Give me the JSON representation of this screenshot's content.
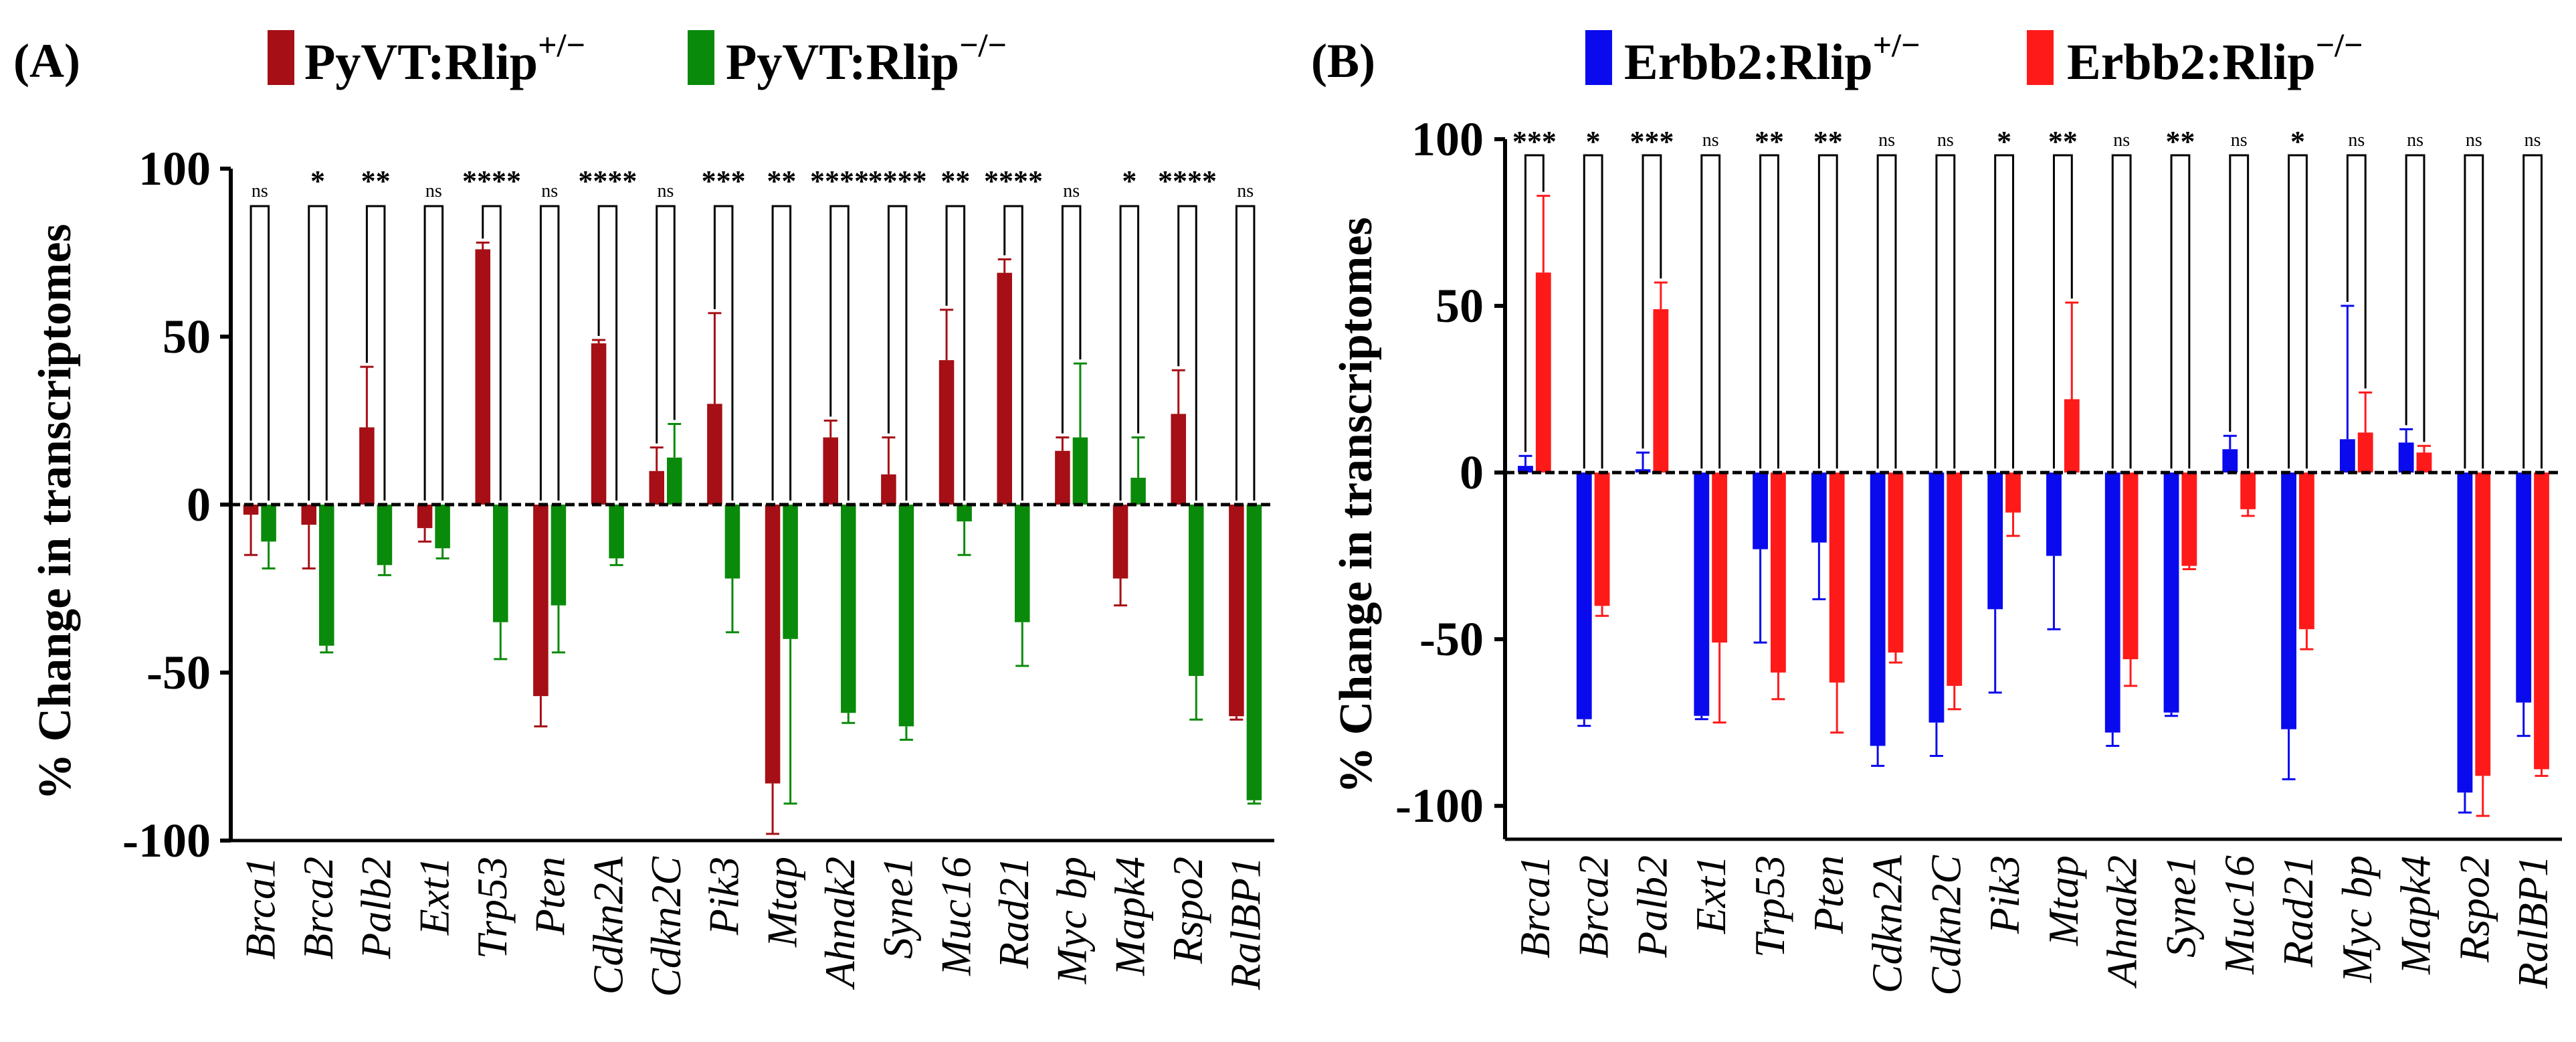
{
  "chart_data": [
    {
      "type": "bar",
      "panel_label": "(A)",
      "title": "",
      "xlabel": "",
      "ylabel": "% Change in transcriptomes",
      "ylim": [
        -100,
        100
      ],
      "yticks": [
        100,
        50,
        0,
        -50,
        -100
      ],
      "ytick_labels": [
        "100",
        "50",
        "0",
        "-50",
        "-100"
      ],
      "categories": [
        "Brca1",
        "Brca2",
        "Palb2",
        "Ext1",
        "Trp53",
        "Pten",
        "Cdkn2A",
        "Cdkn2C",
        "Pik3",
        "Mtap",
        "Ahnak2",
        "Syne1",
        "Muc16",
        "Rad21",
        "Myc bp",
        "Mapk4",
        "Rspo2",
        "RalBP1"
      ],
      "series": [
        {
          "name": "PyVT:Rlip",
          "superscript": "+/−",
          "color": "#a50f15",
          "values": [
            -3,
            -6,
            23,
            -7,
            76,
            -57,
            48,
            10,
            30,
            -83,
            20,
            9,
            43,
            69,
            16,
            -22,
            27,
            -63
          ],
          "errors": [
            12,
            13,
            18,
            4,
            2,
            9,
            1,
            7,
            27,
            15,
            5,
            11,
            15,
            4,
            4,
            8,
            13,
            1
          ]
        },
        {
          "name": "PyVT:Rlip",
          "superscript": "−/−",
          "color": "#0a8a0a",
          "values": [
            -11,
            -42,
            -18,
            -13,
            -35,
            -30,
            -16,
            14,
            -22,
            -40,
            -62,
            -66,
            -5,
            -35,
            20,
            8,
            -51,
            -88
          ],
          "errors": [
            8,
            2,
            3,
            3,
            11,
            14,
            2,
            10,
            16,
            49,
            3,
            4,
            10,
            13,
            22,
            12,
            13,
            1
          ]
        }
      ],
      "significance": [
        "ns",
        "*",
        "**",
        "ns",
        "****",
        "ns",
        "****",
        "ns",
        "***",
        "**",
        "****",
        "****",
        "**",
        "****",
        "ns",
        "*",
        "****",
        "ns"
      ]
    },
    {
      "type": "bar",
      "panel_label": "(B)",
      "title": "",
      "xlabel": "",
      "ylabel": "% Change in transcriptomes",
      "ylim": [
        -110,
        100
      ],
      "yticks": [
        100,
        50,
        0,
        -50,
        -100
      ],
      "ytick_labels": [
        "100",
        "50",
        "0",
        "-50",
        "-100"
      ],
      "categories": [
        "Brca1",
        "Brca2",
        "Palb2",
        "Ext1",
        "Trp53",
        "Pten",
        "Cdkn2A",
        "Cdkn2C",
        "Pik3",
        "Mtap",
        "Ahnak2",
        "Syne1",
        "Muc16",
        "Rad21",
        "Myc bp",
        "Mapk4",
        "Rspo2",
        "RalBP1"
      ],
      "series": [
        {
          "name": "Erbb2:Rlip",
          "superscript": "+/−",
          "color": "#0a0aee",
          "values": [
            2,
            -74,
            1,
            -73,
            -23,
            -21,
            -82,
            -75,
            -41,
            -25,
            -78,
            -72,
            7,
            -77,
            10,
            9,
            -96,
            -69
          ],
          "errors": [
            3,
            2,
            5,
            1,
            28,
            17,
            6,
            10,
            25,
            22,
            4,
            1,
            4,
            15,
            40,
            4,
            6,
            10
          ]
        },
        {
          "name": "Erbb2:Rlip",
          "superscript": "−/−",
          "color": "#ff1a1a",
          "values": [
            60,
            -40,
            49,
            -51,
            -60,
            -63,
            -54,
            -64,
            -12,
            22,
            -56,
            -28,
            -11,
            -47,
            12,
            6,
            -91,
            -89
          ],
          "errors": [
            23,
            3,
            8,
            24,
            8,
            15,
            3,
            7,
            7,
            29,
            8,
            1,
            2,
            6,
            12,
            2,
            12,
            2
          ]
        }
      ],
      "significance": [
        "***",
        "*",
        "***",
        "ns",
        "**",
        "**",
        "ns",
        "ns",
        "*",
        "**",
        "ns",
        "**",
        "ns",
        "*",
        "ns",
        "ns",
        "ns",
        "ns"
      ]
    }
  ]
}
